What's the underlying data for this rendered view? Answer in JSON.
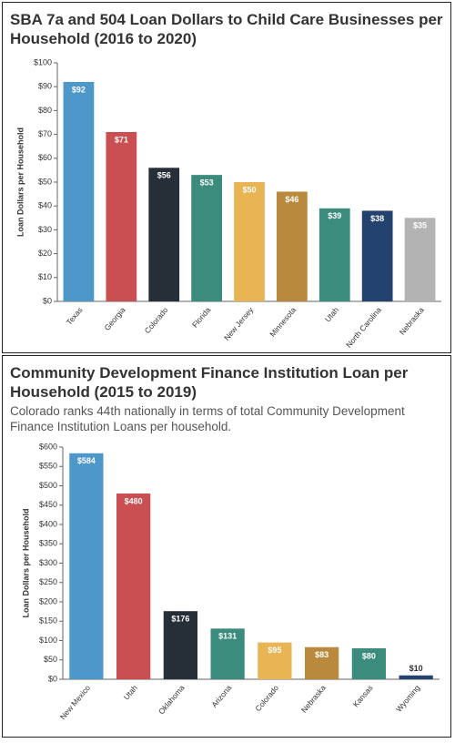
{
  "chart_data": [
    {
      "type": "bar",
      "title": "SBA 7a and 504 Loan Dollars to Child Care Businesses per Household (2016 to 2020)",
      "y_label": "Loan Dollars per Household",
      "categories": [
        "Texas",
        "Georgia",
        "Colorado",
        "Florida",
        "New Jersey",
        "Minnesota",
        "Utah",
        "North Carolina",
        "Nebraska"
      ],
      "values": [
        92,
        71,
        56,
        53,
        50,
        46,
        39,
        38,
        35
      ],
      "value_labels": [
        "$92",
        "$71",
        "$56",
        "$53",
        "$50",
        "$46",
        "$39",
        "$38",
        "$35"
      ],
      "colors": [
        "#4e97c9",
        "#c94f52",
        "#262f38",
        "#3b8c7c",
        "#e9b453",
        "#b98a3d",
        "#3b8c7c",
        "#23426e",
        "#b3b3b3"
      ],
      "ylim": [
        0,
        100
      ],
      "yticks": [
        {
          "value": 0,
          "label": "$0"
        },
        {
          "value": 10,
          "label": "$10"
        },
        {
          "value": 20,
          "label": "$20"
        },
        {
          "value": 30,
          "label": "$30"
        },
        {
          "value": 40,
          "label": "$40"
        },
        {
          "value": 50,
          "label": "$50"
        },
        {
          "value": 60,
          "label": "$60"
        },
        {
          "value": 70,
          "label": "$70"
        },
        {
          "value": 80,
          "label": "$80"
        },
        {
          "value": 90,
          "label": "$90"
        },
        {
          "value": 100,
          "label": "$100"
        }
      ]
    },
    {
      "type": "bar",
      "title": "Community Development Finance Institution Loan per Household (2015 to 2019)",
      "subtitle": "Colorado ranks 44th nationally in terms of total Community Development Finance Institution Loans per household.",
      "y_label": "Loan Dollars per Household",
      "categories": [
        "New Mexico",
        "Utah",
        "Oklahoma",
        "Arizona",
        "Colorado",
        "Nebraska",
        "Kansas",
        "Wyoming"
      ],
      "values": [
        584,
        480,
        176,
        131,
        95,
        83,
        80,
        10
      ],
      "value_labels": [
        "$584",
        "$480",
        "$176",
        "$131",
        "$95",
        "$83",
        "$80",
        "$10"
      ],
      "colors": [
        "#4e97c9",
        "#c94f52",
        "#262f38",
        "#3b8c7c",
        "#e9b453",
        "#b98a3d",
        "#3b8c7c",
        "#23426e"
      ],
      "ylim": [
        0,
        600
      ],
      "yticks": [
        {
          "value": 0,
          "label": "$0"
        },
        {
          "value": 50,
          "label": "$50"
        },
        {
          "value": 100,
          "label": "$100"
        },
        {
          "value": 150,
          "label": "$150"
        },
        {
          "value": 200,
          "label": "$200"
        },
        {
          "value": 250,
          "label": "$250"
        },
        {
          "value": 300,
          "label": "$300"
        },
        {
          "value": 350,
          "label": "$350"
        },
        {
          "value": 400,
          "label": "$400"
        },
        {
          "value": 450,
          "label": "$450"
        },
        {
          "value": 500,
          "label": "$500"
        },
        {
          "value": 550,
          "label": "$550"
        },
        {
          "value": 600,
          "label": "$600"
        }
      ]
    }
  ]
}
